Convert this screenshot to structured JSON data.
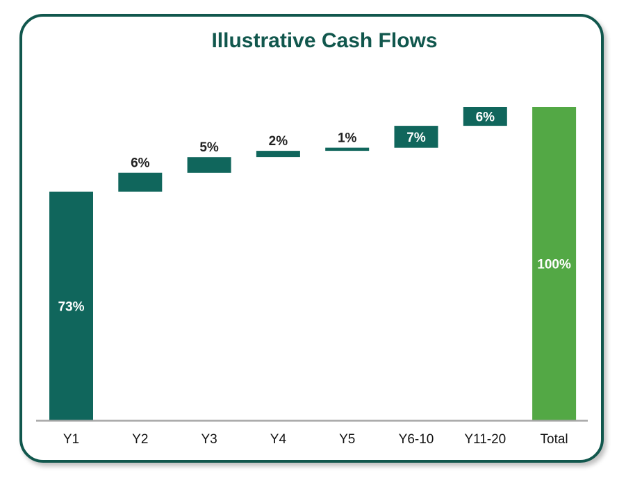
{
  "chart_data": {
    "type": "bar",
    "subtype": "waterfall",
    "title": "Illustrative Cash Flows",
    "xlabel": "",
    "ylabel": "",
    "ylim": [
      0,
      100
    ],
    "grid": false,
    "legend": "none",
    "categories": [
      "Y1",
      "Y2",
      "Y3",
      "Y4",
      "Y5",
      "Y6-10",
      "Y11-20",
      "Total"
    ],
    "values": [
      73,
      6,
      5,
      2,
      1,
      7,
      6,
      100
    ],
    "labels": [
      "73%",
      "6%",
      "5%",
      "2%",
      "1%",
      "7%",
      "6%",
      "100%"
    ],
    "is_total": [
      false,
      false,
      false,
      false,
      false,
      false,
      false,
      true
    ],
    "label_position": [
      "inside",
      "above",
      "above",
      "above",
      "above",
      "inside",
      "inside",
      "inside"
    ]
  },
  "colors": {
    "bar": "#10665c",
    "total": "#53a845",
    "frame": "#11574d",
    "title": "#11574d",
    "axis": "#a6a6a6",
    "label_dark": "#222222",
    "label_light": "#ffffff"
  }
}
